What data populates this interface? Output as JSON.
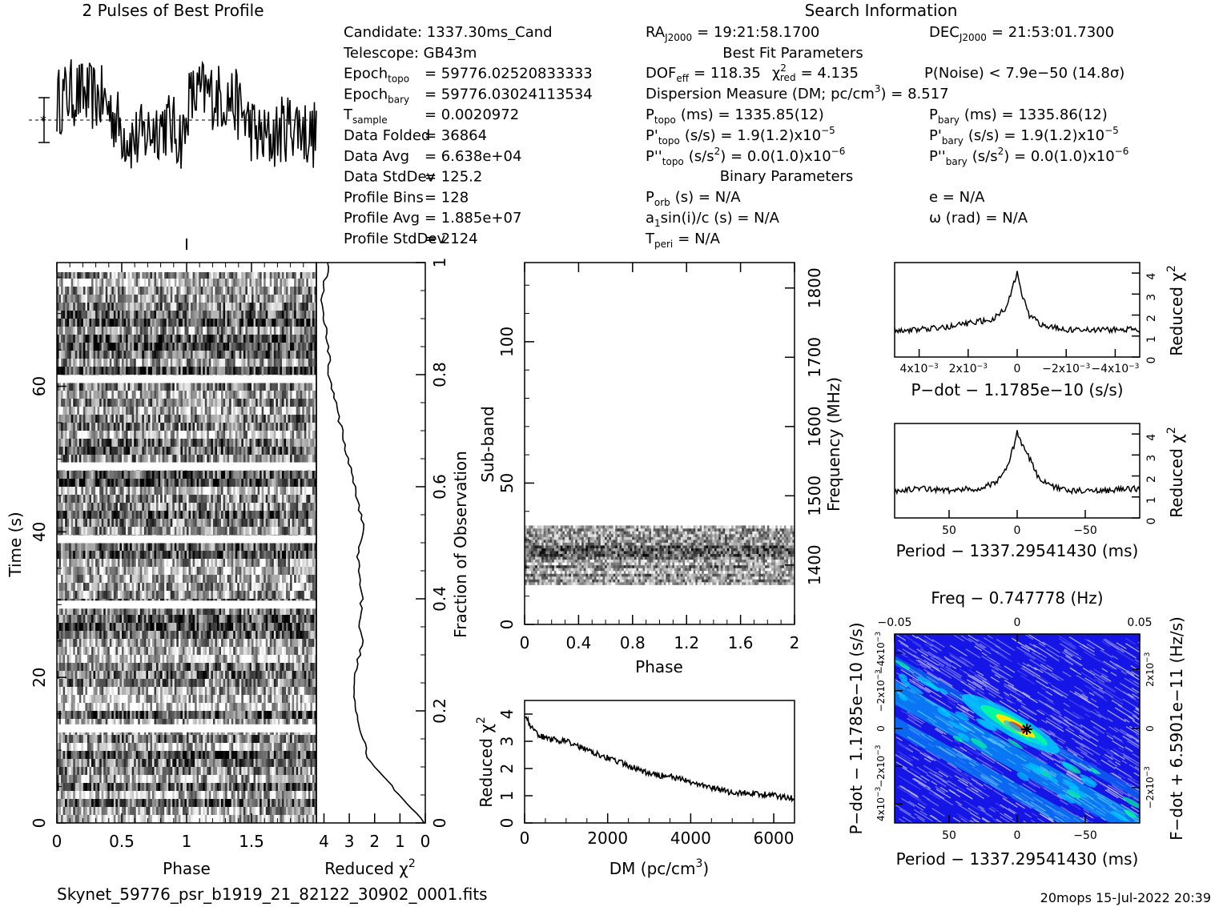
{
  "page": {
    "profile_title": "2 Pulses of Best Profile",
    "search_title": "Search Information",
    "filename": "Skynet_59776_psr_b1919_21_82122_30902_0001.fits",
    "footer_stamp": "20mops  15-Jul-2022 20:39"
  },
  "info": {
    "left_rows": [
      {
        "label": "Candidate:  1337.30ms_Cand",
        "sub": "",
        "value": ""
      },
      {
        "label": "Telescope:  GB43m",
        "sub": "",
        "value": ""
      },
      {
        "label": "Epoch",
        "sub": "topo",
        "value": "= 59776.02520833333"
      },
      {
        "label": "Epoch",
        "sub": "bary",
        "value": "= 59776.03024113534"
      },
      {
        "label": "T",
        "sub": "sample",
        "value": "=   0.0020972"
      },
      {
        "label": "Data Folded",
        "sub": "",
        "value": "=   36864"
      },
      {
        "label": "Data Avg",
        "sub": "",
        "value": "=   6.638e+04"
      },
      {
        "label": "Data StdDev",
        "sub": "",
        "value": "=   125.2"
      },
      {
        "label": "Profile Bins",
        "sub": "",
        "value": "=   128"
      },
      {
        "label": "Profile Avg",
        "sub": "",
        "value": "=   1.885e+07"
      },
      {
        "label": "Profile StdDev",
        "sub": "",
        "value": "=   2124"
      }
    ],
    "ra": {
      "label": "RA",
      "sub": "J2000",
      "value": "= 19:21:58.1700"
    },
    "dec": {
      "label": "DEC",
      "sub": "J2000",
      "value": "= 21:53:01.7300"
    },
    "best_fit_title": "Best Fit Parameters",
    "dof": "DOF",
    "dof_sub": "eff",
    "dof_value": "= 118.35",
    "chi": "χ",
    "chi_sup": "2",
    "chi_sub": "red",
    "chi_value": "= 4.135",
    "pnoise": "P(Noise) < 7.9e−50   (14.8σ)",
    "dm_line": "Dispersion Measure (DM; pc/cm",
    "dm_sup": "3",
    "dm_value": ") = 8.517",
    "p_topo": {
      "label": "P",
      "sub": "topo",
      "value": "(ms) =  1335.85(12)"
    },
    "p_bary": {
      "label": "P",
      "sub": "bary",
      "value": "(ms) =  1335.86(12)"
    },
    "pd_topo": {
      "label": "P'",
      "sub": "topo",
      "value": "(s/s) =  1.9(1.2)x10",
      "exp": "−5"
    },
    "pd_bary": {
      "label": "P'",
      "sub": "bary",
      "value": "(s/s) =  1.9(1.2)x10",
      "exp": "−5"
    },
    "pdd_topo": {
      "label": "P''",
      "sub": "topo",
      "value": "(s/s",
      "sq": "2",
      "rest": ") = 0.0(1.0)x10",
      "exp": "−6"
    },
    "pdd_bary": {
      "label": "P''",
      "sub": "bary",
      "value": "(s/s",
      "sq": "2",
      "rest": ") = 0.0(1.0)x10",
      "exp": "−6"
    },
    "binary_title": "Binary Parameters",
    "porb": {
      "label": "P",
      "sub": "orb",
      "value": "(s) = N/A"
    },
    "ecc": "e = N/A",
    "asini": {
      "label": "a",
      "sub": "1",
      "value": "sin(i)/c (s) = N/A"
    },
    "omega": "ω (rad) = N/A",
    "tperi": {
      "label": "T",
      "sub": "peri",
      "value": "= N/A"
    }
  },
  "chart_data": [
    {
      "id": "profile",
      "type": "line",
      "title": "2 Pulses of Best Profile",
      "x_range": [
        0,
        2
      ],
      "note": "Noisy two-cycle folded profile with weak broad peaks near phase 0.15 and 1.15"
    },
    {
      "id": "time_phase",
      "type": "heatmap",
      "xlabel": "Phase",
      "ylabel": "Time (s)",
      "x_ticks": [
        "0",
        "0.5",
        "1",
        "1.5"
      ],
      "y_ticks": [
        "0",
        "20",
        "40",
        "60"
      ],
      "x_range": [
        0,
        2
      ],
      "y_range": [
        0,
        77
      ],
      "gaps_at_time_s": [
        13,
        30,
        39,
        49,
        61
      ],
      "colormap": "greyscale"
    },
    {
      "id": "time_chi2",
      "type": "line",
      "xlabel": "Reduced χ",
      "xlabel_sup": "2",
      "ylabel_right": "Fraction of Observation",
      "x_ticks": [
        "4",
        "3",
        "2",
        "1",
        "0"
      ],
      "y_ticks": [
        "0",
        "0.2",
        "0.4",
        "0.6",
        "0.8",
        "1"
      ],
      "x": [
        0,
        0.05,
        0.08,
        0.12,
        0.16,
        0.2,
        0.24,
        0.28,
        0.32,
        0.36,
        0.4,
        0.44,
        0.48,
        0.52,
        0.56,
        0.6,
        0.64,
        0.68,
        0.72,
        0.76,
        0.8,
        0.84,
        0.88,
        0.92,
        0.96,
        1.0
      ],
      "y": [
        0,
        1.0,
        1.6,
        2.3,
        2.5,
        2.7,
        2.8,
        2.7,
        2.5,
        2.6,
        2.5,
        2.6,
        2.7,
        2.4,
        2.6,
        2.8,
        3.0,
        3.2,
        3.4,
        3.6,
        3.8,
        3.8,
        3.9,
        4.1,
        4.0,
        3.8
      ]
    },
    {
      "id": "subband",
      "type": "heatmap",
      "xlabel": "Phase",
      "ylabel": "Sub-band",
      "ylabel_right": "Frequency (MHz)",
      "x_ticks": [
        "0",
        "0.4",
        "0.8",
        "1.2",
        "1.6",
        "2"
      ],
      "y_ticks": [
        "0",
        "50",
        "100"
      ],
      "freq_ticks": [
        "1400",
        "1500",
        "1600",
        "1700",
        "1800"
      ],
      "x_range": [
        0,
        2
      ],
      "y_range": [
        0,
        128
      ],
      "occupied_subbands": [
        14,
        35
      ],
      "colormap": "greyscale"
    },
    {
      "id": "dm_chi2",
      "type": "line",
      "xlabel": "DM (pc/cm",
      "xlabel_sup": "3",
      "ylabel": "Reduced χ",
      "ylabel_sup": "2",
      "x_ticks": [
        "0",
        "2000",
        "4000",
        "6000"
      ],
      "y_ticks": [
        "0",
        "1",
        "2",
        "3",
        "4"
      ],
      "x_range": [
        0,
        6500
      ],
      "y_range": [
        0,
        4.5
      ],
      "x": [
        0,
        200,
        500,
        1000,
        1500,
        2000,
        2500,
        3000,
        3500,
        4000,
        4500,
        5000,
        5500,
        6000,
        6500
      ],
      "y": [
        4.0,
        3.4,
        3.1,
        3.0,
        2.7,
        2.4,
        2.1,
        1.8,
        1.7,
        1.5,
        1.3,
        1.1,
        1.1,
        1.0,
        0.9
      ]
    },
    {
      "id": "pdot_chi2",
      "type": "line",
      "xlabel": "P−dot − 1.1785e−10 (s/s)",
      "ylabel_right": "Reduced χ",
      "ylabel_sup": "2",
      "x_ticks": [
        "4x10",
        "2x10",
        "0",
        "−2x10",
        "−4x10"
      ],
      "x_tick_exp": "−3",
      "y_ticks": [
        "0",
        "1",
        "2",
        "3",
        "4"
      ],
      "x_range": [
        0.005,
        -0.005
      ],
      "y_range": [
        0,
        4.5
      ],
      "x": [
        0.005,
        0.004,
        0.003,
        0.002,
        0.001,
        0.0005,
        0.0002,
        0,
        -0.0002,
        -0.0005,
        -0.001,
        -0.002,
        -0.003,
        -0.004,
        -0.005
      ],
      "y": [
        1.3,
        1.3,
        1.4,
        1.6,
        1.8,
        2.3,
        3.2,
        4.1,
        3.0,
        2.0,
        1.5,
        1.3,
        1.3,
        1.3,
        1.3
      ]
    },
    {
      "id": "period_chi2",
      "type": "line",
      "xlabel": "Period − 1337.29541430 (ms)",
      "ylabel_right": "Reduced χ",
      "ylabel_sup": "2",
      "x_ticks": [
        "50",
        "0",
        "−50"
      ],
      "y_ticks": [
        "0",
        "1",
        "2",
        "3",
        "4"
      ],
      "x_range": [
        90,
        -90
      ],
      "y_range": [
        0,
        4.5
      ],
      "x": [
        90,
        70,
        50,
        30,
        15,
        8,
        3,
        0,
        -3,
        -8,
        -15,
        -25,
        -40,
        -60,
        -90
      ],
      "y": [
        1.3,
        1.4,
        1.3,
        1.4,
        1.7,
        2.3,
        3.3,
        4.1,
        3.6,
        3.0,
        2.0,
        1.5,
        1.3,
        1.3,
        1.4
      ]
    },
    {
      "id": "p_pdot_plane",
      "type": "heatmap",
      "xlabel": "Period − 1337.29541430 (ms)",
      "x_ticks": [
        "50",
        "0",
        "−50"
      ],
      "top_xlabel": "Freq − 0.747778 (Hz)",
      "top_ticks": [
        "−0.05",
        "0",
        "0.05"
      ],
      "ylabel": "P−dot − 1.1785e−10 (s/s)",
      "y_ticks": [
        "4x10",
        "−2x10",
        "0",
        "−2x10",
        "−4x10"
      ],
      "y_tick_exp": "−3",
      "ylabel_right": "F−dot + 6.5901e−11 (Hz/s)",
      "right_ticks": [
        "2x10",
        "0",
        "−2x10"
      ],
      "right_tick_exp": "−3",
      "colormap": "rainbow",
      "colors": [
        "#1515e6",
        "#2f2fea",
        "#00c8ff",
        "#00ff9a",
        "#ffe600",
        "#ff2a00"
      ]
    }
  ]
}
